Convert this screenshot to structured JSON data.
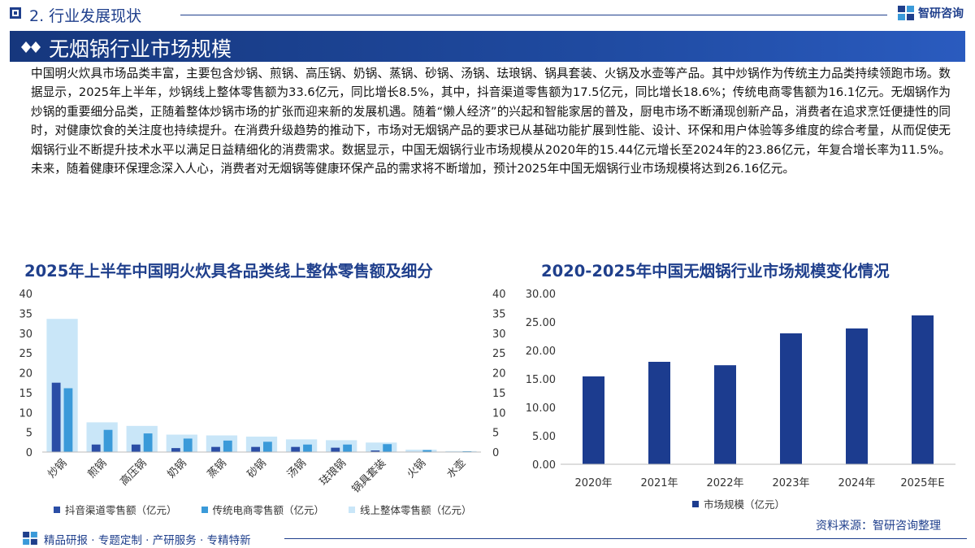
{
  "header": {
    "section_title": "2. 行业发展现状",
    "brand_name": "智研咨询",
    "brand_icon": "zhiyan-logo-icon"
  },
  "banner": {
    "title": "无烟锅行业市场规模"
  },
  "paragraph": "中国明火炊具市场品类丰富，主要包含炒锅、煎锅、高压锅、奶锅、蒸锅、砂锅、汤锅、珐琅锅、锅具套装、火锅及水壶等产品。其中炒锅作为传统主力品类持续领跑市场。数据显示，2025年上半年，炒锅线上整体零售额为33.6亿元，同比增长8.5%，其中，抖音渠道零售额为17.5亿元，同比增长18.6%；传统电商零售额为16.1亿元。无烟锅作为炒锅的重要细分品类，正随着整体炒锅市场的扩张而迎来新的发展机遇。随着“懒人经济”的兴起和智能家居的普及，厨电市场不断涌现创新产品，消费者在追求烹饪便捷性的同时，对健康饮食的关注度也持续提升。在消费升级趋势的推动下，市场对无烟锅产品的要求已从基础功能扩展到性能、设计、环保和用户体验等多维度的综合考量，从而促使无烟锅行业不断提升技术水平以满足日益精细化的消费需求。数据显示，中国无烟锅行业市场规模从2020年的15.44亿元增长至2024年的23.86亿元，年复合增长率为11.5%。未来，随着健康环保理念深入人心，消费者对无烟锅等健康环保产品的需求将不断增加，预计2025年中国无烟锅行业市场规模将达到26.16亿元。",
  "colors": {
    "navy": "#1f3f8c",
    "douyin_bar": "#2b4ea6",
    "ecommerce_bar": "#3a9ad9",
    "online_total_bar": "#c9e6f8",
    "market_bar": "#1c3c8f"
  },
  "chart_data": [
    {
      "type": "bar",
      "title": "2025年上半年中国明火炊具各品类线上整体零售额及细分",
      "categories": [
        "炒锅",
        "煎锅",
        "高压锅",
        "奶锅",
        "蒸锅",
        "砂锅",
        "汤锅",
        "珐琅锅",
        "锅具套装",
        "火锅",
        "水壶"
      ],
      "series": [
        {
          "name": "抖音渠道零售额（亿元）",
          "axis": "left",
          "values": [
            17.5,
            1.9,
            1.9,
            1.0,
            1.3,
            1.3,
            1.3,
            1.1,
            0.4,
            0.1,
            0.05
          ]
        },
        {
          "name": "传统电商零售额（亿元）",
          "axis": "left",
          "values": [
            16.1,
            5.6,
            4.7,
            3.4,
            2.9,
            2.6,
            1.9,
            1.9,
            2.0,
            0.5,
            0.2
          ]
        },
        {
          "name": "线上整体零售额（亿元）",
          "axis": "right",
          "values": [
            33.6,
            7.5,
            6.6,
            4.4,
            4.2,
            3.9,
            3.2,
            3.0,
            2.4,
            0.6,
            0.25
          ]
        }
      ],
      "ylim": [
        0,
        40
      ],
      "yticks": [
        "0",
        "5",
        "10",
        "15",
        "20",
        "25",
        "30",
        "35",
        "40"
      ],
      "y2lim": [
        0,
        40
      ],
      "y2ticks": [
        "0",
        "5",
        "10",
        "15",
        "20",
        "25",
        "30",
        "35",
        "40"
      ],
      "grid": false,
      "legend": "bottom"
    },
    {
      "type": "bar",
      "title": "2020-2025年中国无烟锅行业市场规模变化情况",
      "categories": [
        "2020年",
        "2021年",
        "2022年",
        "2023年",
        "2024年",
        "2025年E"
      ],
      "series": [
        {
          "name": "市场规模（亿元）",
          "values": [
            15.44,
            18.0,
            17.4,
            23.0,
            23.86,
            26.16
          ]
        }
      ],
      "ylim": [
        0,
        30
      ],
      "yticks": [
        "0.00",
        "5.00",
        "10.00",
        "15.00",
        "20.00",
        "25.00",
        "30.00"
      ],
      "grid": false,
      "legend": "bottom"
    }
  ],
  "footer": {
    "source": "资料来源：智研咨询整理",
    "services": "精品研报 · 专题定制 · 产研服务 · 专精特新"
  }
}
